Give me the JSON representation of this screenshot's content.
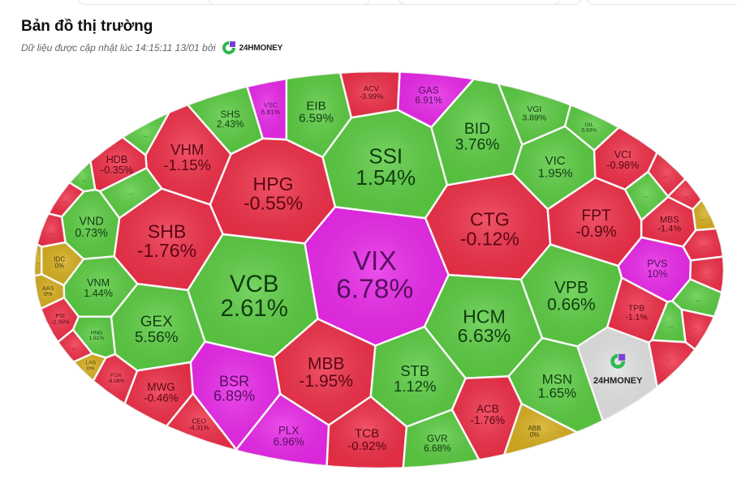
{
  "header": {
    "title": "Bản đồ thị trường",
    "subtitle": "Dữ liệu được cập nhật lúc 14:15:11 13/01 bởi",
    "brand": "24HMONEY"
  },
  "colors": {
    "up": "#5bcc42",
    "down": "#ef2f48",
    "ceiling": "#e928e9",
    "reference": "#d6ae1e",
    "logo_cell": "#e2e2e2"
  },
  "chart_data": {
    "type": "heatmap",
    "title": "Bản đồ thị trường",
    "cells": [
      {
        "ticker": "VIX",
        "change": "6.78%",
        "status": "ceiling"
      },
      {
        "ticker": "VCB",
        "change": "2.61%",
        "status": "up"
      },
      {
        "ticker": "SSI",
        "change": "1.54%",
        "status": "up"
      },
      {
        "ticker": "HPG",
        "change": "-0.55%",
        "status": "down"
      },
      {
        "ticker": "SHB",
        "change": "-1.76%",
        "status": "down"
      },
      {
        "ticker": "CTG",
        "change": "-0.12%",
        "status": "down"
      },
      {
        "ticker": "HCM",
        "change": "6.63%",
        "status": "up"
      },
      {
        "ticker": "MBB",
        "change": "-1.95%",
        "status": "down"
      },
      {
        "ticker": "VPB",
        "change": "0.66%",
        "status": "up"
      },
      {
        "ticker": "FPT",
        "change": "-0.9%",
        "status": "down"
      },
      {
        "ticker": "GEX",
        "change": "5.56%",
        "status": "up"
      },
      {
        "ticker": "BID",
        "change": "3.76%",
        "status": "up"
      },
      {
        "ticker": "VHM",
        "change": "-1.15%",
        "status": "down"
      },
      {
        "ticker": "STB",
        "change": "1.12%",
        "status": "up"
      },
      {
        "ticker": "BSR",
        "change": "6.89%",
        "status": "ceiling"
      },
      {
        "ticker": "MSN",
        "change": "1.65%",
        "status": "up"
      },
      {
        "ticker": "VIC",
        "change": "1.95%",
        "status": "up"
      },
      {
        "ticker": "EIB",
        "change": "6.59%",
        "status": "up"
      },
      {
        "ticker": "HDB",
        "change": "-0.35%",
        "status": "down"
      },
      {
        "ticker": "VND",
        "change": "0.73%",
        "status": "up"
      },
      {
        "ticker": "VNM",
        "change": "1.44%",
        "status": "up"
      },
      {
        "ticker": "TCB",
        "change": "-0.92%",
        "status": "down"
      },
      {
        "ticker": "ACB",
        "change": "-1.76%",
        "status": "down"
      },
      {
        "ticker": "PLX",
        "change": "6.96%",
        "status": "ceiling"
      },
      {
        "ticker": "MWG",
        "change": "-0.46%",
        "status": "down"
      },
      {
        "ticker": "GVR",
        "change": "6.68%",
        "status": "up"
      },
      {
        "ticker": "SHS",
        "change": "2.43%",
        "status": "up"
      },
      {
        "ticker": "GAS",
        "change": "6.91%",
        "status": "ceiling"
      },
      {
        "ticker": "VCI",
        "change": "-0.98%",
        "status": "down"
      },
      {
        "ticker": "MBS",
        "change": "-1.4%",
        "status": "down"
      },
      {
        "ticker": "PVS",
        "change": "10%",
        "status": "ceiling"
      },
      {
        "ticker": "TPB",
        "change": "-1.1%",
        "status": "down"
      },
      {
        "ticker": "ACV",
        "change": "-3.99%",
        "status": "down"
      },
      {
        "ticker": "VSC",
        "change": "6.81%",
        "status": "ceiling"
      },
      {
        "ticker": "VGI",
        "change": "3.89%",
        "status": "up"
      },
      {
        "ticker": "OIL",
        "change": "5.93%",
        "status": "up"
      },
      {
        "ticker": "IDC",
        "change": "0%",
        "status": "reference"
      },
      {
        "ticker": "AAS",
        "change": "0%",
        "status": "reference"
      },
      {
        "ticker": "PSI",
        "change": "-2.35%",
        "status": "down"
      },
      {
        "ticker": "HNG",
        "change": "1.61%",
        "status": "up"
      },
      {
        "ticker": "LAS",
        "change": "0%",
        "status": "reference"
      },
      {
        "ticker": "FOX",
        "change": "-6.08%",
        "status": "down"
      },
      {
        "ticker": "CEO",
        "change": "-4.31%",
        "status": "down"
      },
      {
        "ticker": "ABB",
        "change": "0%",
        "status": "reference"
      },
      {
        "ticker": "24HMONEY",
        "change": "",
        "status": "logo"
      },
      {
        "ticker": "...",
        "change": "",
        "status": "up"
      },
      {
        "ticker": "...",
        "change": "",
        "status": "up"
      },
      {
        "ticker": "...",
        "change": "",
        "status": "up"
      },
      {
        "ticker": "...",
        "change": "",
        "status": "down"
      },
      {
        "ticker": "...",
        "change": "",
        "status": "down"
      },
      {
        "ticker": "...",
        "change": "",
        "status": "reference"
      },
      {
        "ticker": "...",
        "change": "",
        "status": "down"
      },
      {
        "ticker": "...",
        "change": "",
        "status": "down"
      },
      {
        "ticker": "...",
        "change": "",
        "status": "up"
      },
      {
        "ticker": "...",
        "change": "",
        "status": "down"
      },
      {
        "ticker": "...",
        "change": "",
        "status": "reference"
      },
      {
        "ticker": "...",
        "change": "",
        "status": "down"
      },
      {
        "ticker": "...",
        "change": "",
        "status": "down"
      },
      {
        "ticker": "...",
        "change": "",
        "status": "up"
      },
      {
        "ticker": "...",
        "change": "",
        "status": "down"
      },
      {
        "ticker": "...",
        "change": "",
        "status": "up"
      },
      {
        "ticker": "...",
        "change": "",
        "status": "down"
      }
    ]
  }
}
